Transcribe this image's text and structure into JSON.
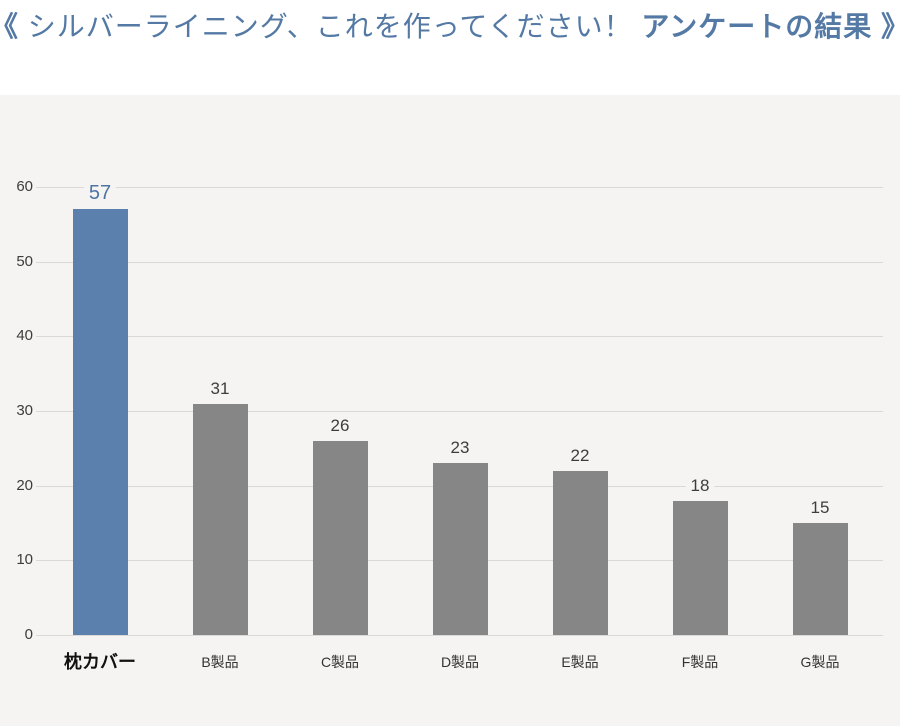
{
  "header": {
    "open_bracket": "《 ",
    "title_regular": "シルバーライニング、これを作ってください！ ",
    "title_bold": "アンケートの結果",
    "close_bracket": " 》"
  },
  "chart_data": {
    "type": "bar",
    "title": "《 シルバーライニング、これを作ってください！ アンケートの結果 》",
    "categories": [
      "枕カバー",
      "B製品",
      "C製品",
      "D製品",
      "E製品",
      "F製品",
      "G製品"
    ],
    "values": [
      57,
      31,
      26,
      23,
      22,
      18,
      15
    ],
    "highlight_index": 0,
    "xlabel": "",
    "ylabel": "",
    "ylim": [
      0,
      60
    ],
    "yticks": [
      0,
      10,
      20,
      30,
      40,
      50,
      60
    ],
    "grid": true,
    "legend": "none",
    "colors": {
      "highlight_bar": "#5b80ad",
      "default_bar": "#868686",
      "highlight_value_text": "#4d74a4",
      "default_value_text": "#3d3d3d",
      "background": "#f5f4f2",
      "gridline": "#dbd9d6",
      "title_text": "#5379a4"
    }
  }
}
